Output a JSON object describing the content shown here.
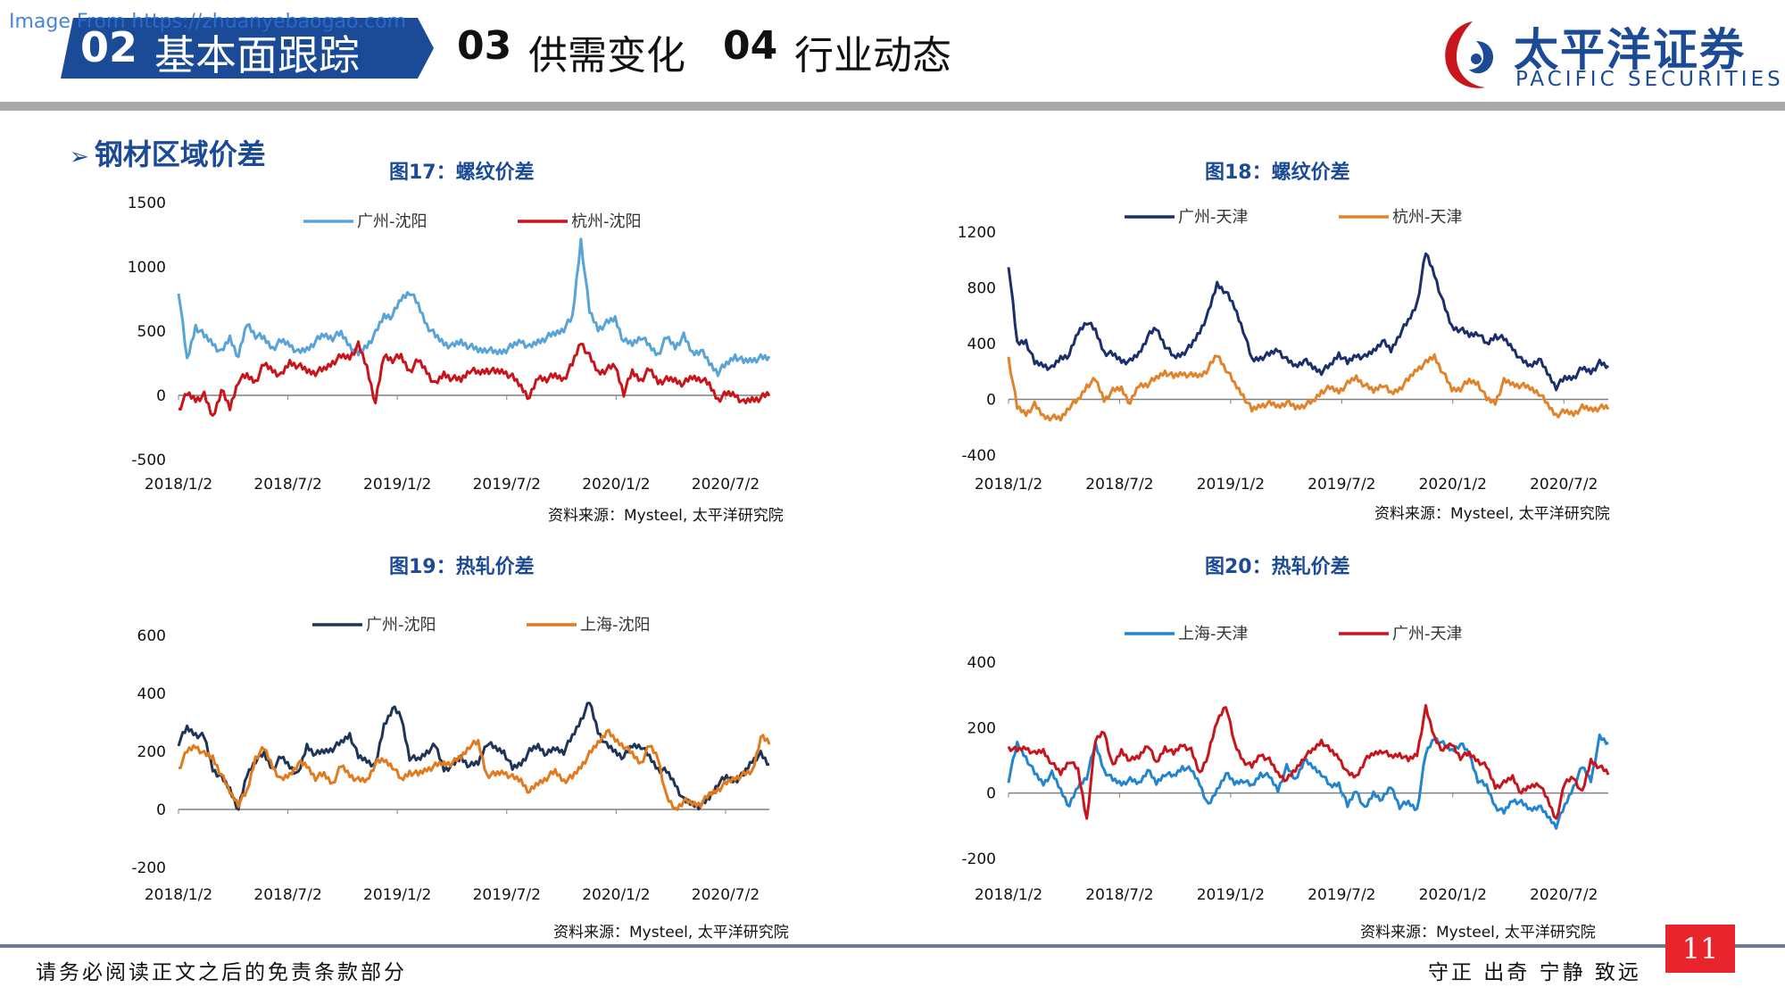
{
  "watermark": "Image From https://zhuanyebaogao.com",
  "header": {
    "active_tab": {
      "num": "02",
      "label": "基本面跟踪"
    },
    "tabs": [
      {
        "num": "03",
        "label": "供需变化"
      },
      {
        "num": "04",
        "label": "行业动态"
      }
    ],
    "logo_cn": "太平洋证券",
    "logo_en": "PACIFIC SECURITIES",
    "colors": {
      "brand": "#1b4a97",
      "accent": "#e8242c"
    }
  },
  "section_title": "钢材区域价差",
  "footer": {
    "disclaimer": "请务必阅读正文之后的免责条款部分",
    "motto": "守正 出奇 宁静 致远",
    "page": "11"
  },
  "chart_data": [
    {
      "type": "line",
      "title": "图17：螺纹价差",
      "source": "资料来源：Mysteel, 太平洋研究院",
      "ylim": [
        -500,
        1500
      ],
      "yticks": [
        "1500",
        "1000",
        "500",
        "0",
        "-500"
      ],
      "xticks": [
        "2018/1/2",
        "2018/7/2",
        "2019/1/2",
        "2019/7/2",
        "2020/1/2",
        "2020/7/2"
      ],
      "legend": "top",
      "series": [
        {
          "name": "广州-沈阳",
          "color": "#5aa3d6",
          "values": [
            820,
            270,
            540,
            460,
            410,
            330,
            450,
            300,
            560,
            470,
            440,
            370,
            420,
            400,
            330,
            360,
            420,
            470,
            450,
            480,
            390,
            320,
            390,
            480,
            620,
            620,
            750,
            810,
            700,
            550,
            460,
            410,
            380,
            420,
            380,
            350,
            360,
            330,
            350,
            380,
            430,
            370,
            420,
            450,
            480,
            520,
            600,
            1210,
            650,
            520,
            560,
            600,
            420,
            400,
            460,
            380,
            320,
            450,
            380,
            460,
            330,
            350,
            250,
            180,
            240,
            310,
            260,
            280,
            290,
            290
          ]
        },
        {
          "name": "杭州-沈阳",
          "color": "#c8151b",
          "values": [
            -110,
            10,
            -30,
            0,
            -170,
            40,
            -100,
            120,
            150,
            110,
            240,
            200,
            150,
            260,
            230,
            190,
            180,
            200,
            260,
            300,
            300,
            390,
            220,
            -60,
            310,
            280,
            300,
            190,
            270,
            190,
            80,
            170,
            130,
            120,
            200,
            170,
            200,
            180,
            190,
            140,
            70,
            -20,
            140,
            130,
            150,
            130,
            240,
            420,
            300,
            180,
            200,
            230,
            20,
            180,
            120,
            200,
            110,
            120,
            120,
            90,
            140,
            130,
            80,
            -30,
            10,
            10,
            -60,
            -30,
            -20,
            10
          ]
        }
      ]
    },
    {
      "type": "line",
      "title": "图18：螺纹价差",
      "source": "资料来源：Mysteel, 太平洋研究院",
      "ylim": [
        -400,
        1200
      ],
      "yticks": [
        "1200",
        "800",
        "400",
        "0",
        "-400"
      ],
      "xticks": [
        "2018/1/2",
        "2018/7/2",
        "2019/1/2",
        "2019/7/2",
        "2020/1/2",
        "2020/7/2"
      ],
      "legend": "top",
      "series": [
        {
          "name": "广州-天津",
          "color": "#1a2f6b",
          "values": [
            970,
            400,
            420,
            260,
            250,
            220,
            300,
            320,
            480,
            560,
            490,
            340,
            320,
            280,
            270,
            330,
            450,
            510,
            390,
            300,
            330,
            380,
            490,
            620,
            830,
            770,
            660,
            500,
            280,
            300,
            320,
            360,
            280,
            240,
            280,
            230,
            200,
            240,
            330,
            260,
            320,
            300,
            350,
            420,
            350,
            470,
            560,
            690,
            1050,
            900,
            690,
            520,
            500,
            460,
            480,
            390,
            460,
            430,
            370,
            280,
            240,
            290,
            190,
            90,
            150,
            160,
            220,
            200,
            260,
            230
          ]
        },
        {
          "name": "杭州-天津",
          "color": "#e0832a",
          "values": [
            300,
            -60,
            -100,
            -40,
            -120,
            -130,
            -140,
            -50,
            -10,
            100,
            140,
            0,
            60,
            80,
            -30,
            100,
            110,
            150,
            200,
            160,
            190,
            170,
            170,
            220,
            320,
            220,
            110,
            30,
            -80,
            -40,
            -30,
            -50,
            -20,
            -60,
            -40,
            -20,
            60,
            80,
            60,
            110,
            160,
            100,
            60,
            110,
            40,
            80,
            140,
            220,
            260,
            310,
            190,
            70,
            80,
            130,
            120,
            0,
            -20,
            130,
            110,
            100,
            80,
            50,
            -40,
            -110,
            -90,
            -100,
            -60,
            -70,
            -60,
            -60
          ]
        }
      ]
    },
    {
      "type": "line",
      "title": "图19：热轧价差",
      "source": "资料来源：Mysteel, 太平洋研究院",
      "ylim": [
        -200,
        600
      ],
      "yticks": [
        "600",
        "400",
        "200",
        "0",
        "-200"
      ],
      "xticks": [
        "2018/1/2",
        "2018/7/2",
        "2019/1/2",
        "2019/7/2",
        "2020/1/2",
        "2020/7/2"
      ],
      "legend": "top",
      "series": [
        {
          "name": "广州-沈阳",
          "color": "#1f3557",
          "values": [
            230,
            280,
            260,
            250,
            140,
            110,
            70,
            0,
            120,
            170,
            190,
            140,
            180,
            150,
            120,
            220,
            190,
            200,
            210,
            230,
            260,
            180,
            170,
            150,
            290,
            350,
            320,
            180,
            170,
            200,
            220,
            140,
            150,
            180,
            150,
            160,
            230,
            210,
            200,
            140,
            160,
            200,
            220,
            190,
            210,
            200,
            250,
            310,
            370,
            270,
            220,
            200,
            180,
            220,
            220,
            180,
            140,
            130,
            90,
            30,
            20,
            10,
            40,
            90,
            110,
            100,
            120,
            170,
            190,
            150
          ]
        },
        {
          "name": "上海-沈阳",
          "color": "#e27a1e",
          "values": [
            140,
            200,
            220,
            190,
            180,
            120,
            60,
            20,
            60,
            180,
            210,
            150,
            100,
            120,
            160,
            150,
            110,
            120,
            90,
            150,
            120,
            100,
            100,
            160,
            170,
            150,
            100,
            130,
            120,
            140,
            150,
            160,
            160,
            180,
            220,
            230,
            120,
            120,
            130,
            110,
            100,
            60,
            90,
            110,
            130,
            100,
            110,
            150,
            190,
            230,
            270,
            240,
            220,
            190,
            160,
            220,
            180,
            40,
            0,
            30,
            20,
            20,
            50,
            70,
            90,
            110,
            120,
            130,
            250,
            230
          ]
        }
      ]
    },
    {
      "type": "line",
      "title": "图20：热轧价差",
      "source": "资料来源：Mysteel, 太平洋研究院",
      "ylim": [
        -200,
        400
      ],
      "yticks": [
        "400",
        "200",
        "0",
        "-200"
      ],
      "xticks": [
        "2018/1/2",
        "2018/7/2",
        "2019/1/2",
        "2019/7/2",
        "2020/1/2",
        "2020/7/2"
      ],
      "legend": "top",
      "series": [
        {
          "name": "上海-天津",
          "color": "#2384cf",
          "values": [
            40,
            150,
            110,
            60,
            30,
            60,
            10,
            -40,
            20,
            50,
            150,
            70,
            40,
            30,
            40,
            30,
            70,
            30,
            60,
            50,
            80,
            70,
            30,
            -40,
            10,
            60,
            30,
            40,
            20,
            60,
            50,
            10,
            80,
            40,
            100,
            80,
            60,
            20,
            30,
            -40,
            10,
            -50,
            0,
            -20,
            20,
            -40,
            -30,
            -50,
            120,
            170,
            150,
            130,
            150,
            120,
            40,
            20,
            -40,
            -60,
            -20,
            -30,
            -50,
            -40,
            -70,
            -100,
            -40,
            20,
            80,
            40,
            170,
            150
          ]
        },
        {
          "name": "广州-天津",
          "color": "#c8151b",
          "values": [
            140,
            130,
            140,
            120,
            130,
            90,
            60,
            100,
            70,
            -80,
            160,
            190,
            80,
            130,
            100,
            110,
            150,
            90,
            140,
            120,
            150,
            130,
            60,
            120,
            220,
            270,
            150,
            100,
            80,
            120,
            100,
            60,
            40,
            70,
            110,
            130,
            160,
            130,
            110,
            60,
            50,
            100,
            120,
            130,
            110,
            120,
            100,
            120,
            260,
            170,
            130,
            150,
            110,
            120,
            100,
            80,
            20,
            30,
            50,
            0,
            20,
            30,
            -20,
            -80,
            30,
            50,
            0,
            100,
            80,
            60
          ]
        }
      ]
    }
  ]
}
